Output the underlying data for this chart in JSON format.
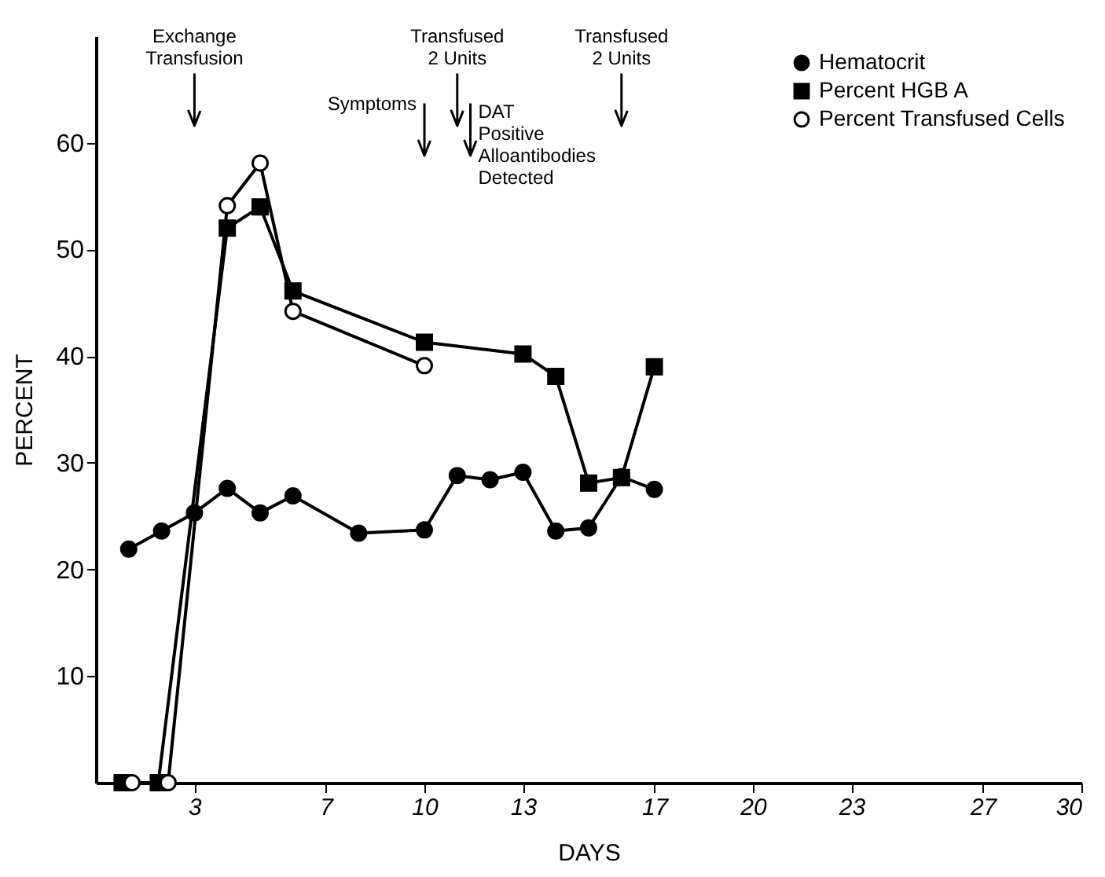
{
  "chart_data": {
    "type": "line",
    "xlabel": "DAYS",
    "ylabel": "PERCENT",
    "xlim": [
      0,
      30
    ],
    "xticks": [
      3,
      7,
      10,
      13,
      17,
      20,
      23,
      27,
      30
    ],
    "ylim": [
      0,
      70
    ],
    "yticks": [
      10,
      20,
      30,
      40,
      50,
      60
    ],
    "grid": false,
    "legend": "top right",
    "line_style": "solid",
    "series": [
      {
        "name": "Hematocrit",
        "color": "#000000",
        "marker": "circle",
        "x": [
          1,
          2,
          3,
          4,
          5,
          6,
          8,
          10,
          11,
          12,
          13,
          14,
          15,
          16,
          17
        ],
        "values": [
          21.9,
          23.6,
          25.3,
          27.6,
          25.3,
          26.9,
          23.4,
          23.7,
          28.8,
          28.4,
          29.1,
          23.6,
          23.9,
          28.7,
          27.5
        ]
      },
      {
        "name": "Percent HGB A",
        "color": "#000000",
        "marker": "square",
        "x": [
          0.8,
          1.9,
          4,
          5,
          6,
          10,
          13,
          14,
          15,
          16,
          17
        ],
        "values": [
          0,
          0,
          52,
          54,
          46.1,
          41.3,
          40.2,
          38.1,
          28.1,
          28.6,
          39
        ]
      },
      {
        "name": "Percent Transfused Cells",
        "color": "#000000",
        "marker": "circle",
        "x": [
          1.1,
          2.2,
          4,
          5,
          6,
          10
        ],
        "values": [
          0,
          0,
          54.1,
          58.1,
          44.2,
          39.1
        ]
      }
    ],
    "ref_lines": [
      {
        "axis": "x",
        "value": 3,
        "label": "Exchange\nTransfusion"
      },
      {
        "axis": "x",
        "value": 10,
        "label": "Symptoms"
      },
      {
        "axis": "x",
        "value": 11,
        "label": "Transfused\n2 Units"
      },
      {
        "axis": "x",
        "value": 11.4,
        "label": "DAT\nPositive\nAlloantibodies\nDetected"
      },
      {
        "axis": "x",
        "value": 16,
        "label": "Transfused\n2 Units"
      }
    ]
  }
}
